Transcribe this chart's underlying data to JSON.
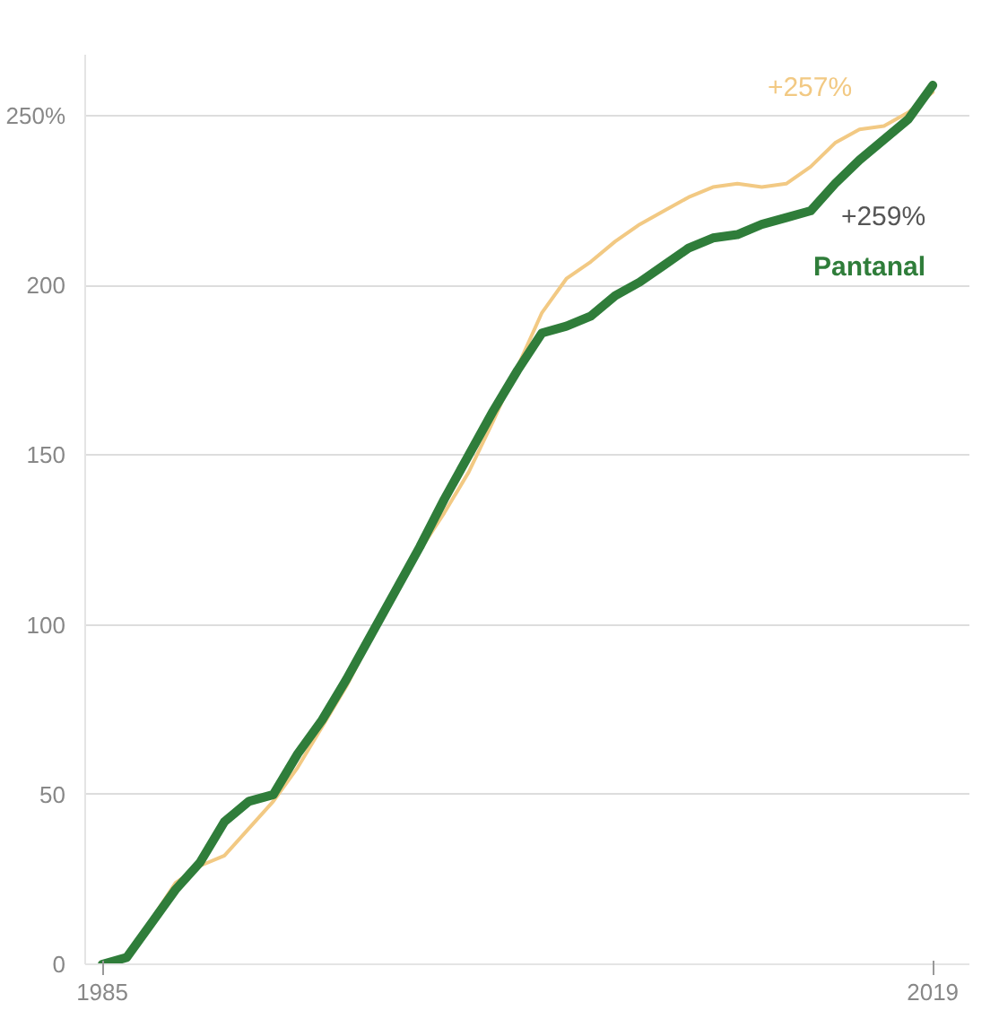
{
  "chart_data": {
    "type": "line",
    "x": [
      1985,
      1986,
      1987,
      1988,
      1989,
      1990,
      1991,
      1992,
      1993,
      1994,
      1995,
      1996,
      1997,
      1998,
      1999,
      2000,
      2001,
      2002,
      2003,
      2004,
      2005,
      2006,
      2007,
      2008,
      2009,
      2010,
      2011,
      2012,
      2013,
      2014,
      2015,
      2016,
      2017,
      2018,
      2019
    ],
    "series": [
      {
        "color": "#f2c983",
        "values": [
          0,
          2,
          13,
          24,
          29,
          32,
          40,
          48,
          58,
          70,
          82,
          96,
          110,
          122,
          133,
          145,
          160,
          176,
          192,
          202,
          207,
          213,
          218,
          222,
          226,
          229,
          230,
          229,
          230,
          235,
          242,
          246,
          247,
          251,
          257
        ]
      },
      {
        "name": "Pantanal",
        "color": "#2f7d3a",
        "values": [
          0,
          2,
          12,
          22,
          30,
          42,
          48,
          50,
          62,
          72,
          84,
          97,
          110,
          123,
          137,
          150,
          163,
          175,
          186,
          188,
          191,
          197,
          201,
          206,
          211,
          214,
          215,
          218,
          220,
          222,
          230,
          237,
          243,
          249,
          259
        ]
      }
    ],
    "annotations": [
      "+257%",
      "+259%"
    ],
    "xlim": [
      1984.3,
      2020.5
    ],
    "ylim": [
      0,
      268
    ],
    "xticks": [
      1985,
      2019
    ],
    "yticks": [
      0,
      50,
      100,
      150,
      200,
      {
        "value": 250,
        "label": "250%"
      }
    ],
    "grid": "y",
    "line_style": "solid",
    "marker": "none"
  }
}
